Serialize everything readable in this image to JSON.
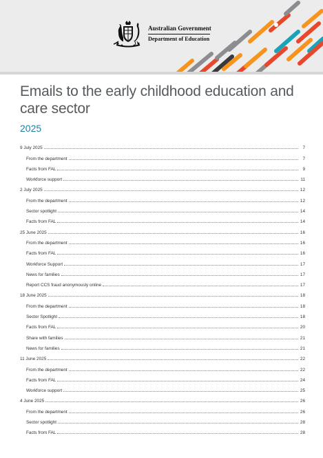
{
  "header": {
    "government_name": "Australian Government",
    "department_name": "Department of Education",
    "stripe_colors": [
      "#f7941d",
      "#e8472c",
      "#8b8d90",
      "#1aa3b8",
      "#3a3a3a"
    ]
  },
  "document": {
    "title": "Emails to the early childhood education and care sector",
    "year": "2025"
  },
  "toc": [
    {
      "label": "9 July 2025",
      "page": "7",
      "level": 1
    },
    {
      "label": "From the department",
      "page": "7",
      "level": 2
    },
    {
      "label": "Facts from FAL",
      "page": "9",
      "level": 2
    },
    {
      "label": "Workforce support",
      "page": "11",
      "level": 2
    },
    {
      "label": "2 July 2025",
      "page": "12",
      "level": 1
    },
    {
      "label": "From the department",
      "page": "12",
      "level": 2
    },
    {
      "label": "Sector spotlight",
      "page": "14",
      "level": 2
    },
    {
      "label": "Facts from FAL",
      "page": "14",
      "level": 2
    },
    {
      "label": "25 June 2025",
      "page": "16",
      "level": 1
    },
    {
      "label": "From the department",
      "page": "16",
      "level": 2
    },
    {
      "label": "Facts from FAL",
      "page": "16",
      "level": 2
    },
    {
      "label": "Workforce Support",
      "page": "17",
      "level": 2
    },
    {
      "label": "News for families",
      "page": "17",
      "level": 2
    },
    {
      "label": "Report CCS fraud anonymously online",
      "page": "17",
      "level": 2
    },
    {
      "label": "18 June 2025",
      "page": "18",
      "level": 1
    },
    {
      "label": "From the department",
      "page": "18",
      "level": 2
    },
    {
      "label": "Sector Spotlight",
      "page": "18",
      "level": 2
    },
    {
      "label": "Facts from FAL",
      "page": "20",
      "level": 2
    },
    {
      "label": "Share with families",
      "page": "21",
      "level": 2
    },
    {
      "label": "News for families",
      "page": "21",
      "level": 2
    },
    {
      "label": "11 June 2025",
      "page": "22",
      "level": 1
    },
    {
      "label": "From the department",
      "page": "22",
      "level": 2
    },
    {
      "label": "Facts from FAL",
      "page": "24",
      "level": 2
    },
    {
      "label": "Workforce support",
      "page": "25",
      "level": 2
    },
    {
      "label": "4 June 2025",
      "page": "26",
      "level": 1
    },
    {
      "label": "From the department",
      "page": "26",
      "level": 2
    },
    {
      "label": "Sector spotlight",
      "page": "28",
      "level": 2
    },
    {
      "label": "Facts from FAL",
      "page": "28",
      "level": 2
    }
  ]
}
